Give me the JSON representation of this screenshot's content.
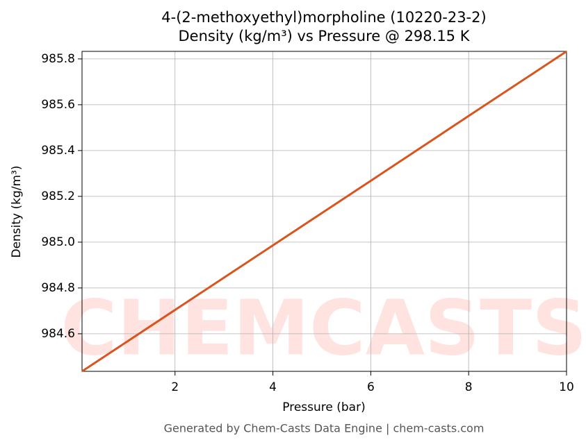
{
  "chart_data": {
    "type": "line",
    "title": "4-(2-methoxyethyl)morpholine (10220-23-2)",
    "subtitle": "Density (kg/m³) vs Pressure @ 298.15 K",
    "x_label": "Pressure (bar)",
    "y_label": "Density (kg/m³)",
    "footer": "Generated by Chem-Casts Data Engine | chem-casts.com",
    "watermark": "CHEMCASTS",
    "x": [
      0.1,
      2,
      4,
      6,
      8,
      10
    ],
    "series": [
      {
        "name": "Density",
        "color": "#d9541e",
        "values": [
          984.436,
          984.704,
          984.986,
          985.268,
          985.551,
          985.833
        ]
      }
    ],
    "xlim": [
      0.1,
      10
    ],
    "xticks": [
      2,
      4,
      6,
      8,
      10
    ],
    "ylim": [
      984.436,
      985.833
    ],
    "yticks": [
      {
        "value": 984.6,
        "label": "984.6"
      },
      {
        "value": 984.8,
        "label": "984.8"
      },
      {
        "value": 985.0,
        "label": "985.0"
      },
      {
        "value": 985.2,
        "label": "985.2"
      },
      {
        "value": 985.4,
        "label": "985.4"
      },
      {
        "value": 985.6,
        "label": "985.6"
      },
      {
        "value": 985.8,
        "label": "985.8"
      }
    ],
    "grid": true
  }
}
